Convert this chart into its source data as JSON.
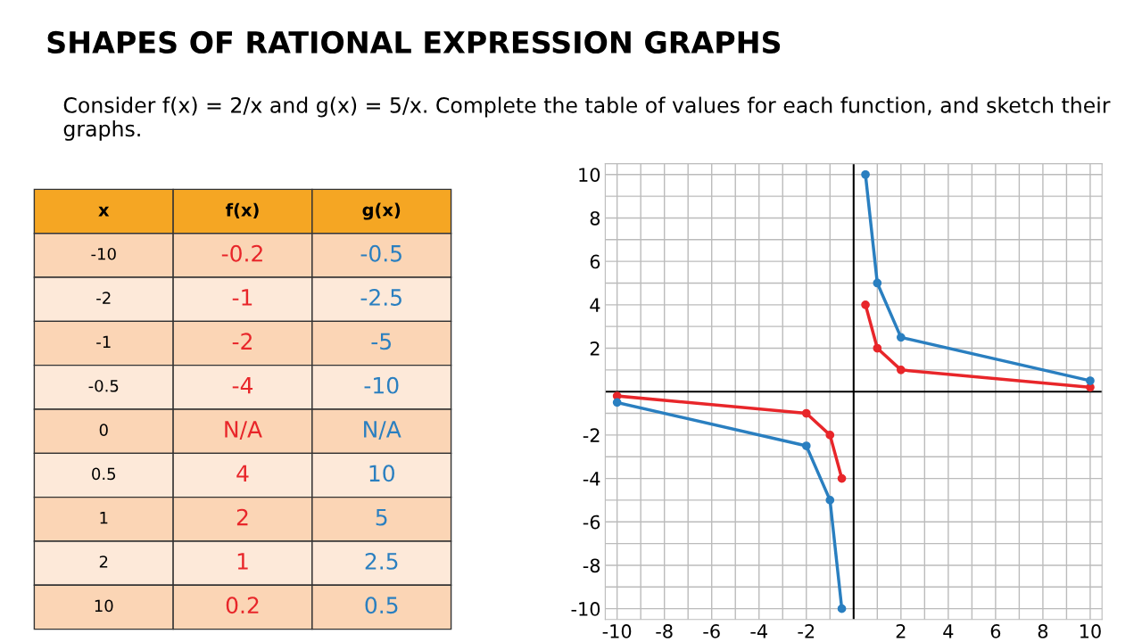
{
  "chart_data": {
    "type": "line",
    "title": "SHAPES OF RATIONAL EXPRESSION GRAPHS",
    "annotations": [
      "Consider f(x) = 2/x and g(x) = 5/x. Complete the table of values for each function, and sketch their graphs.",
      "x",
      "f(x)",
      "g(x)",
      "-10",
      "-0.2",
      "-0.5",
      "-2",
      "-1",
      "-2.5",
      "-1",
      "-2",
      "-5",
      "-0.5",
      "-4",
      "-10",
      "0",
      "N/A",
      "N/A",
      "0.5",
      "4",
      "10",
      "1",
      "2",
      "5",
      "2",
      "1",
      "2.5",
      "10",
      "0.2",
      "0.5"
    ],
    "x": [
      -10,
      -2,
      -1,
      -0.5,
      0,
      0.5,
      1,
      2,
      10
    ],
    "series": [
      {
        "color": "#e8262a",
        "values": [
          -0.2,
          -1,
          -2,
          -4,
          null,
          4,
          2,
          1,
          0.2
        ]
      },
      {
        "color": "#2a7fc0",
        "values": [
          -0.5,
          -2.5,
          -5,
          -10,
          null,
          10,
          5,
          2.5,
          0.5
        ]
      }
    ],
    "xlim": [
      -10.5,
      10.5
    ],
    "ylim": [
      -10.5,
      10.5
    ],
    "xticks": [
      -10,
      {
        "value": -9,
        "label": null
      },
      -8,
      {
        "value": -7,
        "label": null
      },
      -6,
      {
        "value": -5,
        "label": null
      },
      -4,
      {
        "value": -3,
        "label": null
      },
      -2,
      {
        "value": -1,
        "label": null
      },
      {
        "value": 1,
        "label": null
      },
      2,
      {
        "value": 3,
        "label": null
      },
      4,
      {
        "value": 5,
        "label": null
      },
      6,
      {
        "value": 7,
        "label": null
      },
      8,
      {
        "value": 9,
        "label": null
      },
      10
    ],
    "yticks": [
      -10,
      {
        "value": -9,
        "label": null
      },
      -8,
      {
        "value": -7,
        "label": null
      },
      -6,
      {
        "value": -5,
        "label": null
      },
      -4,
      {
        "value": -3,
        "label": null
      },
      -2,
      {
        "value": -1,
        "label": null
      },
      {
        "value": 1,
        "label": null
      },
      2,
      {
        "value": 3,
        "label": null
      },
      4,
      {
        "value": 5,
        "label": null
      },
      6,
      {
        "value": 7,
        "label": null
      },
      8,
      {
        "value": 9,
        "label": null
      },
      10
    ],
    "grid": true,
    "marker": "circle",
    "line_style": "solid"
  }
}
